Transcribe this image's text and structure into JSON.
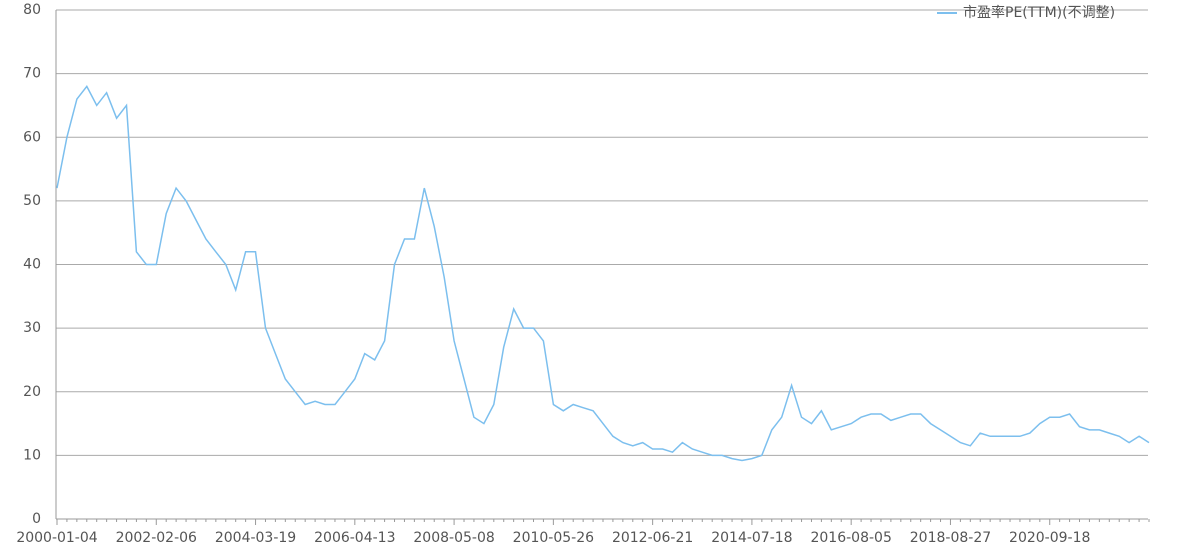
{
  "chart_data": {
    "type": "line",
    "categories": [
      "2000-01-04",
      null,
      null,
      null,
      null,
      null,
      null,
      null,
      null,
      null,
      "2002-02-06",
      null,
      null,
      null,
      null,
      null,
      null,
      null,
      null,
      null,
      "2004-03-19",
      null,
      null,
      null,
      null,
      null,
      null,
      null,
      null,
      null,
      "2006-04-13",
      null,
      null,
      null,
      null,
      null,
      null,
      null,
      null,
      null,
      "2008-05-08",
      null,
      null,
      null,
      null,
      null,
      null,
      null,
      null,
      null,
      "2010-05-26",
      null,
      null,
      null,
      null,
      null,
      null,
      null,
      null,
      null,
      "2012-06-21",
      null,
      null,
      null,
      null,
      null,
      null,
      null,
      null,
      null,
      "2014-07-18",
      null,
      null,
      null,
      null,
      null,
      null,
      null,
      null,
      null,
      "2016-08-05",
      null,
      null,
      null,
      null,
      null,
      null,
      null,
      null,
      null,
      "2018-08-27",
      null,
      null,
      null,
      null,
      null,
      null,
      null,
      null,
      null,
      "2020-09-18",
      null,
      null,
      null,
      null,
      null,
      null,
      null,
      null,
      null,
      null
    ],
    "series": [
      {
        "name": "市盈率PE(TTM)(不调整)",
        "color": "#7cbfee",
        "values": [
          52,
          60,
          66,
          68,
          65,
          67,
          63,
          65,
          42,
          40,
          40,
          48,
          52,
          50,
          47,
          44,
          42,
          40,
          36,
          42,
          42,
          30,
          26,
          22,
          20,
          18,
          18.5,
          18,
          18,
          20,
          22,
          26,
          25,
          28,
          40,
          44,
          44,
          52,
          46,
          38,
          28,
          22,
          16,
          15,
          18,
          27,
          33,
          30,
          30,
          28,
          18,
          17,
          18,
          17.5,
          17,
          15,
          13,
          12,
          11.5,
          12,
          11,
          11,
          10.5,
          12,
          11,
          10.5,
          10,
          10,
          9.5,
          9.2,
          9.5,
          10,
          14,
          16,
          21,
          16,
          15,
          17,
          14,
          14.5,
          15,
          16,
          16.5,
          16.5,
          15.5,
          16,
          16.5,
          16.5,
          15,
          14,
          13,
          12,
          11.5,
          13.5,
          13,
          13,
          13,
          13,
          13.5,
          15,
          16,
          16,
          16.5,
          14.5,
          14,
          14,
          13.5,
          13,
          12,
          13,
          12
        ]
      }
    ],
    "ylim": [
      0,
      80
    ],
    "yticks": [
      0,
      10,
      20,
      30,
      40,
      50,
      60,
      70,
      80
    ],
    "grid": true,
    "legend": "top-right"
  }
}
